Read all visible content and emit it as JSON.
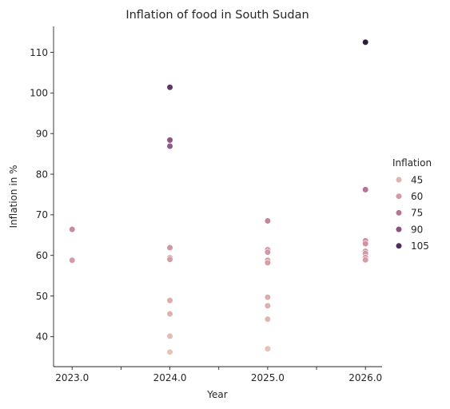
{
  "chart_data": {
    "type": "scatter",
    "title": "Inflation of food in South Sudan",
    "xlabel": "Year",
    "ylabel": "Inflation in %",
    "xlim": [
      2022.81,
      2026.17
    ],
    "ylim": [
      32.6,
      116.4
    ],
    "x_ticks": [
      2023.0,
      2023.5,
      2024.0,
      2024.5,
      2025.0,
      2025.5,
      2026.0
    ],
    "x_tick_labels": [
      "2023.0",
      "",
      "2024.0",
      "",
      "2025.0",
      "",
      "2026.0"
    ],
    "y_ticks": [
      40,
      50,
      60,
      70,
      80,
      90,
      100,
      110
    ],
    "y_tick_labels": [
      "40",
      "50",
      "60",
      "70",
      "80",
      "90",
      "100",
      "110"
    ],
    "grid": false,
    "hue_range": [
      36.2,
      112.5
    ],
    "colors": {
      "light": "#e8c2b6",
      "dark": "#2e1e3b"
    },
    "legend": {
      "title": "Inflation",
      "placement": "right",
      "entries": [
        {
          "label": "45",
          "value": 45
        },
        {
          "label": "60",
          "value": 60
        },
        {
          "label": "75",
          "value": 75
        },
        {
          "label": "90",
          "value": 90
        },
        {
          "label": "105",
          "value": 105
        }
      ]
    },
    "points": [
      {
        "x": 2023.0,
        "y": 66.4
      },
      {
        "x": 2023.0,
        "y": 58.8
      },
      {
        "x": 2024.0,
        "y": 101.4
      },
      {
        "x": 2024.0,
        "y": 88.4
      },
      {
        "x": 2024.0,
        "y": 86.9
      },
      {
        "x": 2024.0,
        "y": 61.9
      },
      {
        "x": 2024.0,
        "y": 59.4
      },
      {
        "x": 2024.0,
        "y": 59.0
      },
      {
        "x": 2024.0,
        "y": 48.9
      },
      {
        "x": 2024.0,
        "y": 45.6
      },
      {
        "x": 2024.0,
        "y": 40.1
      },
      {
        "x": 2024.0,
        "y": 36.2
      },
      {
        "x": 2025.0,
        "y": 68.5
      },
      {
        "x": 2025.0,
        "y": 61.4
      },
      {
        "x": 2025.0,
        "y": 60.8
      },
      {
        "x": 2025.0,
        "y": 58.8
      },
      {
        "x": 2025.0,
        "y": 58.2
      },
      {
        "x": 2025.0,
        "y": 49.7
      },
      {
        "x": 2025.0,
        "y": 47.6
      },
      {
        "x": 2025.0,
        "y": 44.3
      },
      {
        "x": 2025.0,
        "y": 37.0
      },
      {
        "x": 2026.0,
        "y": 112.5
      },
      {
        "x": 2026.0,
        "y": 76.2
      },
      {
        "x": 2026.0,
        "y": 63.6
      },
      {
        "x": 2026.0,
        "y": 62.9
      },
      {
        "x": 2026.0,
        "y": 61.0
      },
      {
        "x": 2026.0,
        "y": 60.5
      },
      {
        "x": 2026.0,
        "y": 59.5
      },
      {
        "x": 2026.0,
        "y": 58.9
      }
    ]
  }
}
